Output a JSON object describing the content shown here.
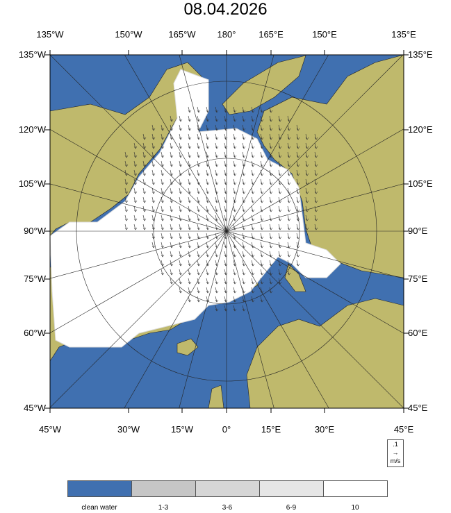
{
  "title": "08.04.2026",
  "top_labels": [
    "135°W",
    "150°W",
    "165°W",
    "180°",
    "165°E",
    "150°E",
    "135°E"
  ],
  "bottom_labels": [
    "45°W",
    "30°W",
    "15°W",
    "0°",
    "15°E",
    "30°E",
    "45°E"
  ],
  "left_labels": [
    "135°W",
    "120°W",
    "105°W",
    "90°W",
    "75°W",
    "60°W",
    "45°W"
  ],
  "right_labels": [
    "135°E",
    "120°E",
    "105°E",
    "90°E",
    "75°E",
    "60°E",
    "45°E"
  ],
  "vector_key": {
    "value": ".1",
    "arrow": "→",
    "unit": "m/s"
  },
  "legend": [
    {
      "label": "clean water",
      "color": "#4070b0"
    },
    {
      "label": "1-3",
      "color": "#c6c6c6"
    },
    {
      "label": "3-6",
      "color": "#d6d6d6"
    },
    {
      "label": "6-9",
      "color": "#e6e6e6"
    },
    {
      "label": "10",
      "color": "#ffffff"
    }
  ],
  "colors": {
    "water": "#4070b0",
    "land": "#bfb96c",
    "ice": "#ffffff"
  }
}
